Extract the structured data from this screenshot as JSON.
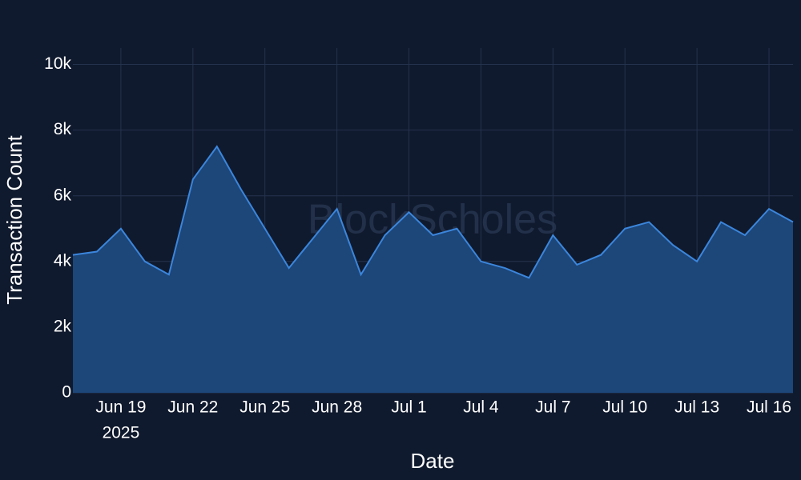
{
  "chart_data": {
    "type": "area",
    "watermark": "BlockScholes",
    "x_label": "Date",
    "y_label": "Transaction Count",
    "x_year_label": "2025",
    "x": [
      "2025-06-17",
      "2025-06-18",
      "2025-06-19",
      "2025-06-20",
      "2025-06-21",
      "2025-06-22",
      "2025-06-23",
      "2025-06-24",
      "2025-06-25",
      "2025-06-26",
      "2025-06-27",
      "2025-06-28",
      "2025-06-29",
      "2025-06-30",
      "2025-07-01",
      "2025-07-02",
      "2025-07-03",
      "2025-07-04",
      "2025-07-05",
      "2025-07-06",
      "2025-07-07",
      "2025-07-08",
      "2025-07-09",
      "2025-07-10",
      "2025-07-11",
      "2025-07-12",
      "2025-07-13",
      "2025-07-14",
      "2025-07-15",
      "2025-07-16",
      "2025-07-17"
    ],
    "series": [
      {
        "name": "Transaction Count",
        "color": "#3b86dc",
        "fill": "#1d4679",
        "values": [
          4200,
          4300,
          5000,
          4000,
          3600,
          6500,
          7500,
          6200,
          5000,
          3800,
          4700,
          5600,
          3600,
          4800,
          5500,
          4800,
          5000,
          4000,
          3800,
          3500,
          4800,
          3900,
          4200,
          5000,
          5200,
          4500,
          4000,
          5200,
          4800,
          5600,
          5200
        ]
      }
    ],
    "xlim": [
      "2025-06-17",
      "2025-07-17"
    ],
    "xticks": [
      {
        "value": "2025-06-19",
        "label": "Jun 19"
      },
      {
        "value": "2025-06-22",
        "label": "Jun 22"
      },
      {
        "value": "2025-06-25",
        "label": "Jun 25"
      },
      {
        "value": "2025-06-28",
        "label": "Jun 28"
      },
      {
        "value": "2025-07-01",
        "label": "Jul 1"
      },
      {
        "value": "2025-07-04",
        "label": "Jul 4"
      },
      {
        "value": "2025-07-07",
        "label": "Jul 7"
      },
      {
        "value": "2025-07-10",
        "label": "Jul 10"
      },
      {
        "value": "2025-07-13",
        "label": "Jul 13"
      },
      {
        "value": "2025-07-16",
        "label": "Jul 16"
      }
    ],
    "ylim": [
      0,
      10500
    ],
    "yticks": [
      0,
      {
        "value": 2000,
        "label": "2k"
      },
      {
        "value": 4000,
        "label": "4k"
      },
      {
        "value": 6000,
        "label": "6k"
      },
      {
        "value": 8000,
        "label": "8k"
      },
      {
        "value": 10000,
        "label": "10k"
      }
    ],
    "grid": true
  }
}
